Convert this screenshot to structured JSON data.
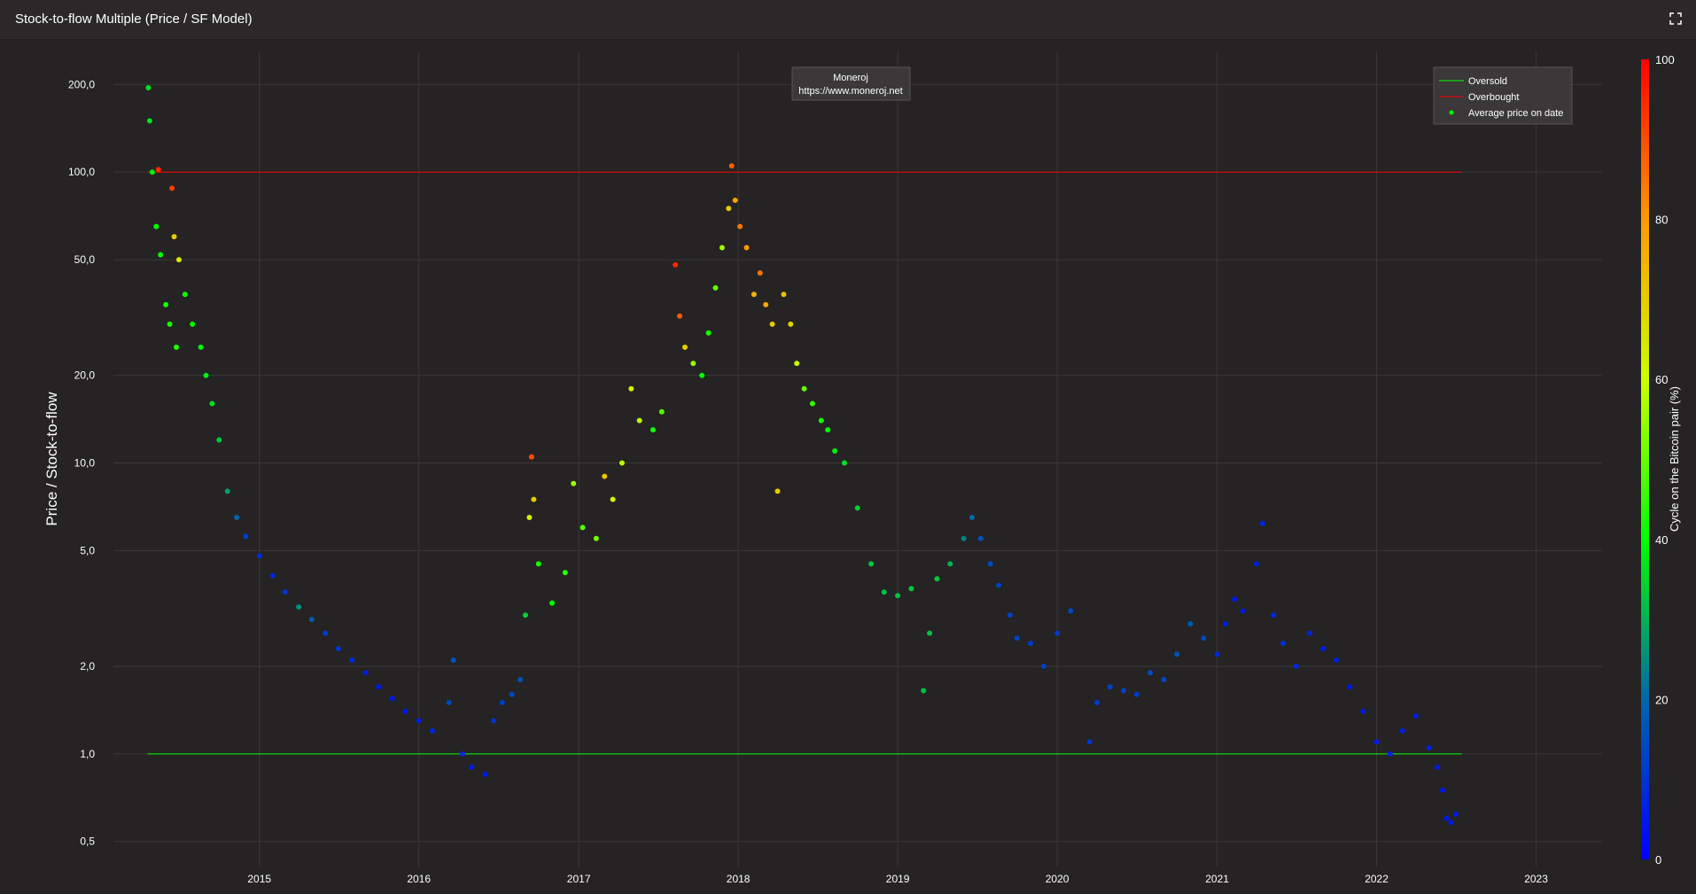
{
  "title": "Stock-to-flow Multiple (Price / SF Model)",
  "icons": {
    "expand": "fullscreen-icon"
  },
  "annotation": {
    "line1": "Moneroj",
    "line2": "https://www.moneroj.net"
  },
  "legend": [
    {
      "label": "Oversold",
      "color": "#00ff00",
      "kind": "line"
    },
    {
      "label": "Overbought",
      "color": "#ff0000",
      "kind": "line"
    },
    {
      "label": "Average price on date",
      "color": "#00ff00",
      "kind": "marker"
    }
  ],
  "colors": {
    "background": "#252323",
    "grid": "#3a3838",
    "oversold": "#00ff00",
    "overbought": "#ff0000"
  },
  "chart_data": {
    "type": "scatter",
    "title": "Stock-to-flow Multiple (Price / SF Model)",
    "ylabel": "Price / Stock-to-flow",
    "y_scale": "log",
    "ylim": [
      0.41,
      260
    ],
    "xlim": [
      "2014-02-01",
      "2023-06-01"
    ],
    "x_ticks": [
      "2015",
      "2016",
      "2017",
      "2018",
      "2019",
      "2020",
      "2021",
      "2022",
      "2023"
    ],
    "y_ticks": [
      {
        "value": 0.5,
        "label": "0,5"
      },
      {
        "value": 1,
        "label": "1,0"
      },
      {
        "value": 2,
        "label": "2,0"
      },
      {
        "value": 5,
        "label": "5,0"
      },
      {
        "value": 10,
        "label": "10,0"
      },
      {
        "value": 20,
        "label": "20,0"
      },
      {
        "value": 50,
        "label": "50,0"
      },
      {
        "value": 100,
        "label": "100,0"
      },
      {
        "value": 200,
        "label": "200,0"
      }
    ],
    "grid": true,
    "legend_position": "top-right",
    "reference_lines": [
      {
        "name": "Oversold",
        "y": 1,
        "x_start": "2014-04-20",
        "x_end": "2022-07-15",
        "color": "#00ff00"
      },
      {
        "name": "Overbought",
        "y": 100,
        "x_start": "2014-04-20",
        "x_end": "2022-07-15",
        "color": "#ff0000"
      }
    ],
    "colorbar": {
      "title": "Cycle on the Bitcoin pair (%)",
      "range": [
        0,
        100
      ],
      "ticks": [
        0,
        20,
        40,
        60,
        80,
        100
      ],
      "colorscale": [
        "#0000ff",
        "#00ff00",
        "#ffff00",
        "#ff0000"
      ]
    },
    "series": [
      {
        "name": "Average price on date",
        "marker_color_by": "cycle_percent",
        "points": [
          [
            "2014-04-22",
            195,
            36
          ],
          [
            "2014-04-25",
            150,
            36
          ],
          [
            "2014-05-01",
            100,
            38
          ],
          [
            "2014-05-10",
            65,
            40
          ],
          [
            "2014-05-20",
            52,
            41
          ],
          [
            "2014-06-01",
            35,
            42
          ],
          [
            "2014-06-10",
            30,
            42
          ],
          [
            "2014-06-25",
            25,
            43
          ],
          [
            "2014-05-15",
            102,
            95
          ],
          [
            "2014-06-15",
            88,
            92
          ],
          [
            "2014-06-20",
            60,
            70
          ],
          [
            "2014-07-01",
            50,
            65
          ],
          [
            "2014-07-15",
            38,
            42
          ],
          [
            "2014-08-01",
            30,
            40
          ],
          [
            "2014-08-20",
            25,
            39
          ],
          [
            "2014-09-01",
            20,
            38
          ],
          [
            "2014-09-15",
            16,
            36
          ],
          [
            "2014-10-01",
            12,
            33
          ],
          [
            "2014-10-20",
            8,
            28
          ],
          [
            "2014-11-10",
            6.5,
            20
          ],
          [
            "2014-12-01",
            5.6,
            12
          ],
          [
            "2015-01-01",
            4.8,
            8
          ],
          [
            "2015-02-01",
            4.1,
            8
          ],
          [
            "2015-03-01",
            3.6,
            10
          ],
          [
            "2015-04-01",
            3.2,
            25
          ],
          [
            "2015-05-01",
            2.9,
            18
          ],
          [
            "2015-06-01",
            2.6,
            12
          ],
          [
            "2015-07-01",
            2.3,
            10
          ],
          [
            "2015-08-01",
            2.1,
            8
          ],
          [
            "2015-09-01",
            1.9,
            6
          ],
          [
            "2015-10-01",
            1.7,
            5
          ],
          [
            "2015-11-01",
            1.55,
            5
          ],
          [
            "2015-12-01",
            1.4,
            5
          ],
          [
            "2016-01-01",
            1.3,
            6
          ],
          [
            "2016-02-01",
            1.2,
            8
          ],
          [
            "2016-03-10",
            1.5,
            14
          ],
          [
            "2016-03-20",
            2.1,
            16
          ],
          [
            "2016-04-10",
            1.0,
            8
          ],
          [
            "2016-05-01",
            0.9,
            6
          ],
          [
            "2016-06-01",
            0.85,
            5
          ],
          [
            "2016-06-20",
            1.3,
            10
          ],
          [
            "2016-07-10",
            1.5,
            12
          ],
          [
            "2016-08-01",
            1.6,
            14
          ],
          [
            "2016-08-20",
            1.8,
            16
          ],
          [
            "2016-09-01",
            3.0,
            34
          ],
          [
            "2016-09-10",
            6.5,
            62
          ],
          [
            "2016-09-15",
            10.5,
            90
          ],
          [
            "2016-09-20",
            7.5,
            70
          ],
          [
            "2016-10-01",
            4.5,
            42
          ],
          [
            "2016-11-01",
            3.3,
            40
          ],
          [
            "2016-12-01",
            4.2,
            44
          ],
          [
            "2016-12-20",
            8.5,
            55
          ],
          [
            "2017-01-10",
            6,
            48
          ],
          [
            "2017-02-10",
            5.5,
            52
          ],
          [
            "2017-03-01",
            9,
            72
          ],
          [
            "2017-03-20",
            7.5,
            62
          ],
          [
            "2017-04-10",
            10,
            58
          ],
          [
            "2017-05-01",
            18,
            62
          ],
          [
            "2017-05-20",
            14,
            58
          ],
          [
            "2017-06-20",
            13,
            42
          ],
          [
            "2017-07-10",
            15,
            48
          ],
          [
            "2017-08-10",
            48,
            95
          ],
          [
            "2017-08-20",
            32,
            88
          ],
          [
            "2017-09-01",
            25,
            70
          ],
          [
            "2017-09-20",
            22,
            55
          ],
          [
            "2017-10-10",
            20,
            40
          ],
          [
            "2017-10-25",
            28,
            42
          ],
          [
            "2017-11-10",
            40,
            50
          ],
          [
            "2017-11-25",
            55,
            55
          ],
          [
            "2017-12-10",
            75,
            70
          ],
          [
            "2017-12-17",
            105,
            88
          ],
          [
            "2017-12-25",
            80,
            78
          ],
          [
            "2018-01-05",
            65,
            85
          ],
          [
            "2018-01-20",
            55,
            80
          ],
          [
            "2018-02-06",
            38,
            75
          ],
          [
            "2018-02-20",
            45,
            85
          ],
          [
            "2018-03-05",
            35,
            78
          ],
          [
            "2018-03-20",
            30,
            70
          ],
          [
            "2018-04-01",
            8,
            70
          ],
          [
            "2018-04-15",
            38,
            72
          ],
          [
            "2018-05-01",
            30,
            68
          ],
          [
            "2018-05-15",
            22,
            60
          ],
          [
            "2018-06-01",
            18,
            50
          ],
          [
            "2018-06-20",
            16,
            45
          ],
          [
            "2018-07-10",
            14,
            42
          ],
          [
            "2018-07-25",
            13,
            40
          ],
          [
            "2018-08-10",
            11,
            38
          ],
          [
            "2018-09-01",
            10,
            36
          ],
          [
            "2018-10-01",
            7,
            34
          ],
          [
            "2018-11-01",
            4.5,
            33
          ],
          [
            "2018-12-01",
            3.6,
            32
          ],
          [
            "2019-01-01",
            3.5,
            32
          ],
          [
            "2019-02-01",
            3.7,
            33
          ],
          [
            "2019-03-01",
            1.65,
            32
          ],
          [
            "2019-03-15",
            2.6,
            32
          ],
          [
            "2019-04-01",
            4.0,
            33
          ],
          [
            "2019-05-01",
            4.5,
            30
          ],
          [
            "2019-06-01",
            5.5,
            24
          ],
          [
            "2019-06-20",
            6.5,
            20
          ],
          [
            "2019-07-10",
            5.5,
            16
          ],
          [
            "2019-08-01",
            4.5,
            14
          ],
          [
            "2019-08-20",
            3.8,
            13
          ],
          [
            "2019-09-15",
            3.0,
            13
          ],
          [
            "2019-10-01",
            2.5,
            13
          ],
          [
            "2019-11-01",
            2.4,
            12
          ],
          [
            "2019-12-01",
            2.0,
            12
          ],
          [
            "2020-01-01",
            2.6,
            12
          ],
          [
            "2020-02-01",
            3.1,
            14
          ],
          [
            "2020-03-15",
            1.1,
            10
          ],
          [
            "2020-04-01",
            1.5,
            12
          ],
          [
            "2020-05-01",
            1.7,
            13
          ],
          [
            "2020-06-01",
            1.65,
            13
          ],
          [
            "2020-07-01",
            1.6,
            12
          ],
          [
            "2020-08-01",
            1.9,
            15
          ],
          [
            "2020-09-01",
            1.8,
            14
          ],
          [
            "2020-10-01",
            2.2,
            16
          ],
          [
            "2020-11-01",
            2.8,
            18
          ],
          [
            "2020-12-01",
            2.5,
            14
          ],
          [
            "2021-01-01",
            2.2,
            8
          ],
          [
            "2021-01-20",
            2.8,
            6
          ],
          [
            "2021-02-10",
            3.4,
            5
          ],
          [
            "2021-03-01",
            3.1,
            5
          ],
          [
            "2021-04-01",
            4.5,
            6
          ],
          [
            "2021-04-15",
            6.2,
            7
          ],
          [
            "2021-05-10",
            3.0,
            8
          ],
          [
            "2021-06-01",
            2.4,
            9
          ],
          [
            "2021-07-01",
            2.0,
            8
          ],
          [
            "2021-08-01",
            2.6,
            7
          ],
          [
            "2021-09-01",
            2.3,
            6
          ],
          [
            "2021-10-01",
            2.1,
            6
          ],
          [
            "2021-11-01",
            1.7,
            5
          ],
          [
            "2021-12-01",
            1.4,
            5
          ],
          [
            "2022-01-01",
            1.1,
            5
          ],
          [
            "2022-02-01",
            1.0,
            6
          ],
          [
            "2022-03-01",
            1.2,
            6
          ],
          [
            "2022-04-01",
            1.35,
            6
          ],
          [
            "2022-05-01",
            1.05,
            6
          ],
          [
            "2022-05-20",
            0.9,
            5
          ],
          [
            "2022-06-01",
            0.75,
            5
          ],
          [
            "2022-06-10",
            0.6,
            5
          ],
          [
            "2022-06-20",
            0.58,
            5
          ],
          [
            "2022-07-01",
            0.62,
            5
          ]
        ]
      }
    ]
  }
}
